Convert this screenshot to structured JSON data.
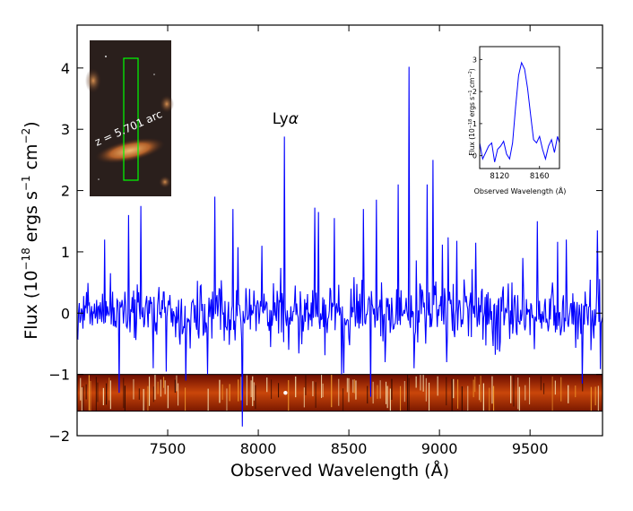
{
  "chart_data": {
    "main": {
      "type": "line",
      "xlabel": "Observed Wavelength (Å)",
      "ylabel_main": "Flux (10",
      "ylabel_exp1": "−18",
      "ylabel_mid": " ergs s",
      "ylabel_exp2": "−1",
      "ylabel_mid2": " cm",
      "ylabel_exp3": "−2",
      "ylabel_end": ")",
      "xlim": [
        7000,
        9900
      ],
      "ylim": [
        -2,
        4.7
      ],
      "xticks": [
        {
          "v": 7500,
          "label": "7500"
        },
        {
          "v": 8000,
          "label": "8000"
        },
        {
          "v": 8500,
          "label": "8500"
        },
        {
          "v": 9000,
          "label": "9000"
        },
        {
          "v": 9500,
          "label": "9500"
        }
      ],
      "yticks": [
        {
          "v": -2,
          "label": "−2"
        },
        {
          "v": -1,
          "label": "−1"
        },
        {
          "v": 0,
          "label": "0"
        },
        {
          "v": 1,
          "label": "1"
        },
        {
          "v": 2,
          "label": "2"
        },
        {
          "v": 3,
          "label": "3"
        },
        {
          "v": 4,
          "label": "4"
        }
      ],
      "series_color": "#0000ff",
      "annotation": {
        "text_main": "Ly",
        "text_greek": "α",
        "x": 8150,
        "y": 3.0
      },
      "spectrum_2d_band": {
        "y_top": -1.0,
        "y_bottom": -1.6
      },
      "lines": [
        {
          "x": 7150,
          "y": 1.2
        },
        {
          "x": 7230,
          "y": -1.3
        },
        {
          "x": 7285,
          "y": 1.6
        },
        {
          "x": 7350,
          "y": 1.75
        },
        {
          "x": 7420,
          "y": -0.9
        },
        {
          "x": 7600,
          "y": -1.1
        },
        {
          "x": 7720,
          "y": -1.0
        },
        {
          "x": 7760,
          "y": 1.9
        },
        {
          "x": 7860,
          "y": 1.7
        },
        {
          "x": 7910,
          "y": -1.85
        },
        {
          "x": 8020,
          "y": 1.1
        },
        {
          "x": 8145,
          "y": 2.88
        },
        {
          "x": 8330,
          "y": 1.65
        },
        {
          "x": 8420,
          "y": 1.55
        },
        {
          "x": 8460,
          "y": -1.0
        },
        {
          "x": 8580,
          "y": 1.7
        },
        {
          "x": 8650,
          "y": 1.85
        },
        {
          "x": 8700,
          "y": -0.8
        },
        {
          "x": 8770,
          "y": 2.1
        },
        {
          "x": 8830,
          "y": 4.02
        },
        {
          "x": 8860,
          "y": -0.9
        },
        {
          "x": 8930,
          "y": 2.1
        },
        {
          "x": 8965,
          "y": 2.5
        },
        {
          "x": 9040,
          "y": -0.8
        },
        {
          "x": 9200,
          "y": 1.15
        },
        {
          "x": 9320,
          "y": -0.6
        },
        {
          "x": 9460,
          "y": 0.9
        },
        {
          "x": 9540,
          "y": 1.5
        },
        {
          "x": 9700,
          "y": 1.2
        },
        {
          "x": 9870,
          "y": 1.35
        }
      ]
    },
    "inset": {
      "type": "line",
      "xlabel": "Observed Wavelength (Å)",
      "ylabel_main": "Flux (10",
      "ylabel_exp1": "−18",
      "ylabel_mid": " ergs s",
      "ylabel_exp2": "−1",
      "ylabel_mid2": " cm",
      "ylabel_exp3": "−2",
      "ylabel_end": ")",
      "xlim": [
        8100,
        8180
      ],
      "ylim": [
        -0.4,
        3.4
      ],
      "xticks": [
        {
          "v": 8120,
          "label": "8120"
        },
        {
          "v": 8160,
          "label": "8160"
        }
      ],
      "yticks": [
        {
          "v": 0,
          "label": "0"
        },
        {
          "v": 1,
          "label": "1"
        },
        {
          "v": 2,
          "label": "2"
        },
        {
          "v": 3,
          "label": "3"
        }
      ],
      "series_color": "#0000ff",
      "x": [
        8100,
        8103,
        8106,
        8109,
        8112,
        8115,
        8118,
        8121,
        8124,
        8127,
        8130,
        8133,
        8136,
        8139,
        8142,
        8145,
        8148,
        8151,
        8154,
        8157,
        8160,
        8163,
        8166,
        8169,
        8172,
        8175,
        8178,
        8180
      ],
      "y": [
        0.4,
        -0.1,
        0.1,
        0.3,
        0.4,
        -0.2,
        0.2,
        0.3,
        0.45,
        0.05,
        -0.1,
        0.4,
        1.5,
        2.5,
        2.9,
        2.7,
        2.1,
        1.3,
        0.5,
        0.4,
        0.6,
        0.2,
        -0.1,
        0.3,
        0.5,
        0.1,
        0.6,
        0.4
      ]
    },
    "image_inset": {
      "label": "z = 5.701 arc",
      "slit_color": "#00ff00"
    }
  }
}
